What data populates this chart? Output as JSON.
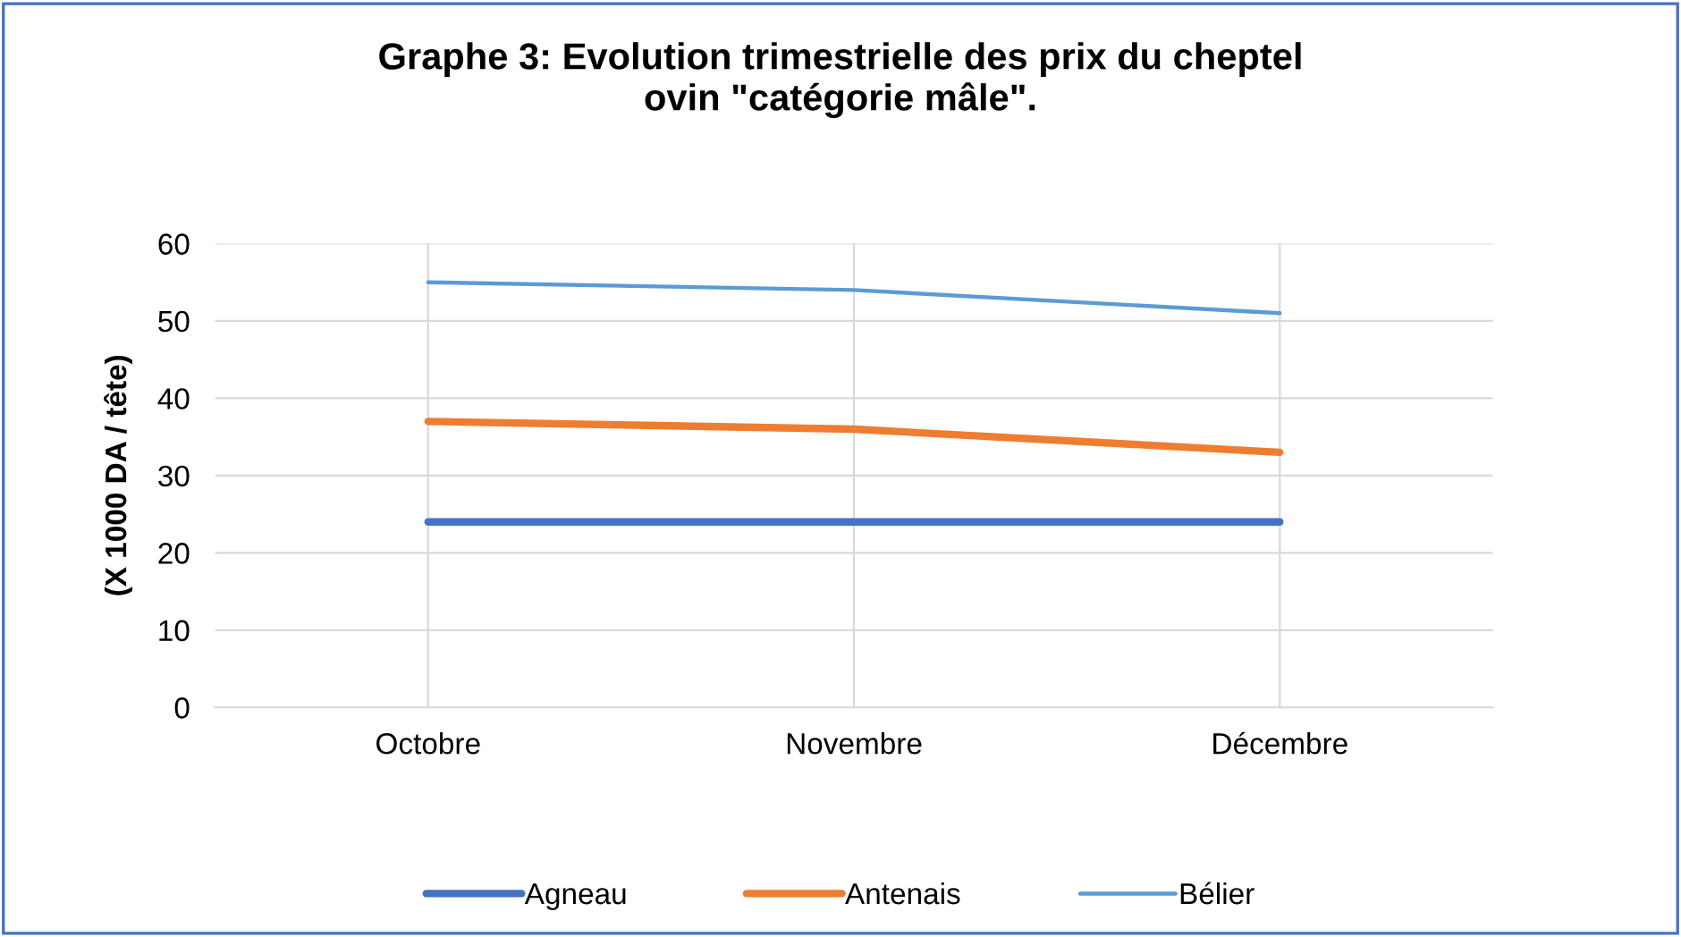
{
  "chart_data": {
    "type": "line",
    "title": "Graphe 3: Evolution trimestrielle des prix du cheptel\novin \"catégorie mâle\".",
    "ylabel": "(X 1000 DA / tête)",
    "categories": [
      "Octobre",
      "Novembre",
      "Décembre"
    ],
    "series": [
      {
        "name": "Agneau",
        "color": "#4472c4",
        "values": [
          24,
          24,
          24
        ]
      },
      {
        "name": "Antenais",
        "color": "#ed7d31",
        "values": [
          37,
          36,
          33
        ]
      },
      {
        "name": "Bélier",
        "color": "#5b9bd5",
        "values": [
          55,
          54,
          51
        ]
      }
    ],
    "ylim": [
      0,
      60
    ],
    "yticks": [
      0,
      10,
      20,
      30,
      40,
      50,
      60
    ],
    "grid": true,
    "legend": "bottom",
    "marker": "none",
    "line_style": "solid"
  }
}
